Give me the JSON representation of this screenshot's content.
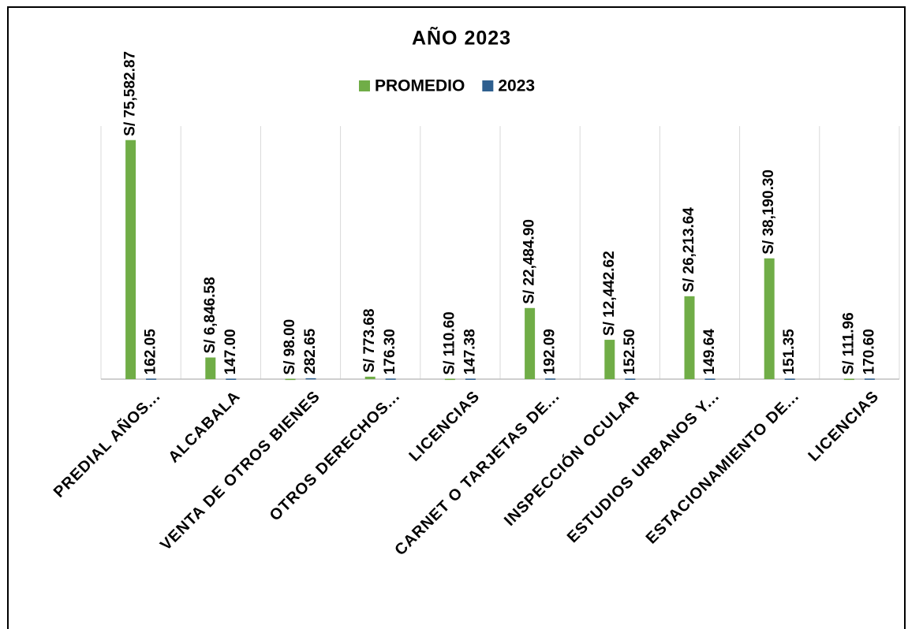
{
  "chart_data": {
    "type": "bar",
    "title": "AÑO 2023",
    "categories": [
      "PREDIAL AÑOS...",
      "ALCABALA",
      "VENTA DE OTROS BIENES",
      "OTROS DERECHOS...",
      "LICENCIAS",
      "CARNET O TARJETAS DE...",
      "INSPECCIÓN OCULAR",
      "ESTUDIOS URBANOS Y...",
      "ESTACIONAMIENTO DE...",
      "LICENCIAS"
    ],
    "series": [
      {
        "name": "PROMEDIO",
        "color": "#70ad47",
        "values": [
          75582.87,
          6846.58,
          98.0,
          773.68,
          110.6,
          22484.9,
          12442.62,
          26213.64,
          38190.3,
          111.96
        ],
        "value_labels": [
          "S/ 75,582.87",
          "S/ 6,846.58",
          "S/ 98.00",
          "S/ 773.68",
          "S/ 110.60",
          "S/ 22,484.90",
          "S/ 12,442.62",
          "S/ 26,213.64",
          "S/ 38,190.30",
          "S/ 111.96"
        ]
      },
      {
        "name": "2023",
        "color": "#2e5f8f",
        "values": [
          162.05,
          147.0,
          282.65,
          176.3,
          147.38,
          192.09,
          152.5,
          149.64,
          151.35,
          170.6
        ],
        "value_labels": [
          "162.05",
          "147.00",
          "282.65",
          "176.30",
          "147.38",
          "192.09",
          "152.50",
          "149.64",
          "151.35",
          "170.60"
        ]
      }
    ],
    "ylim": [
      0,
      80000
    ],
    "legend": "top"
  }
}
